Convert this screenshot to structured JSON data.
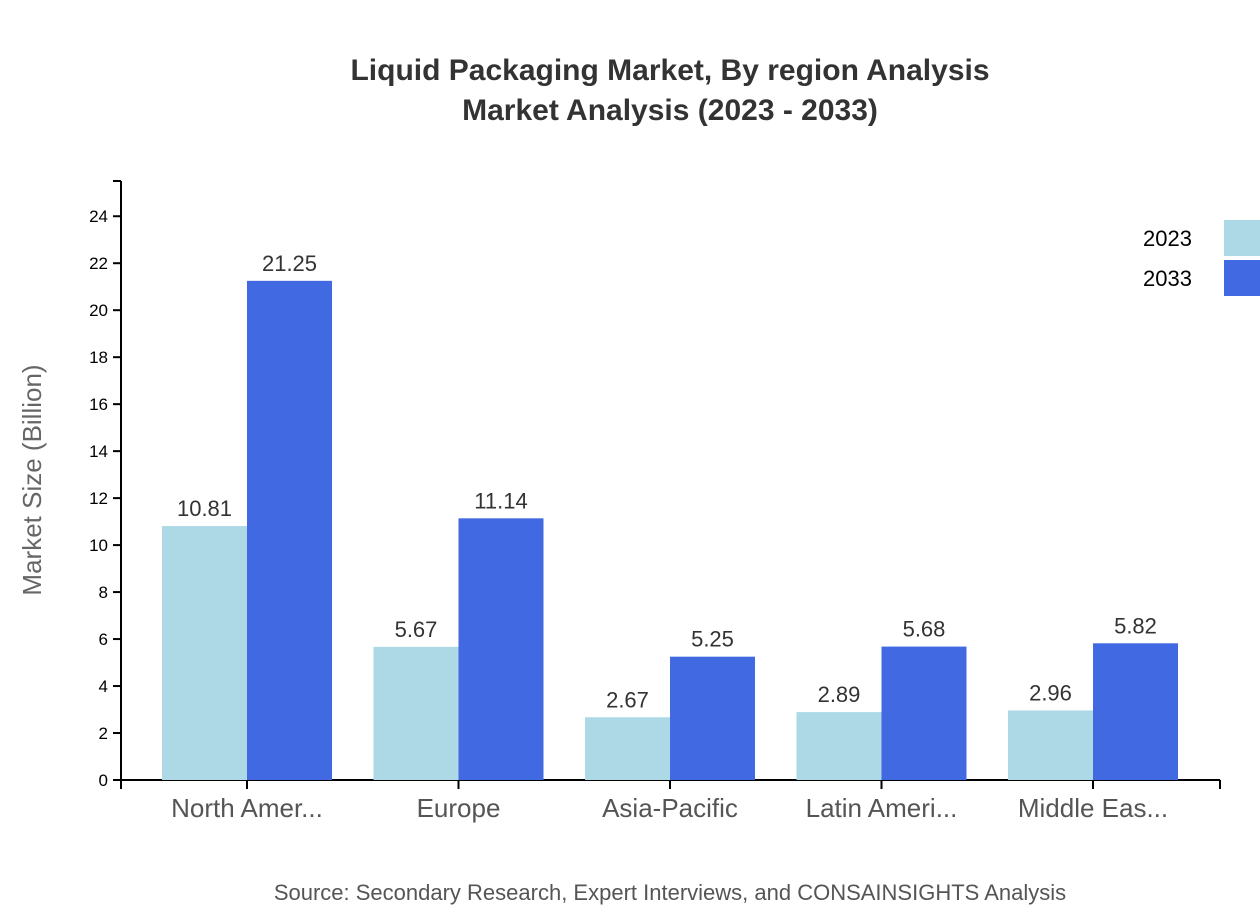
{
  "chart_data": {
    "type": "bar",
    "title": "Liquid Packaging Market, By region Analysis",
    "subtitle": "Market Analysis (2023 - 2033)",
    "xlabel": "",
    "ylabel": "Market Size (Billion)",
    "ylim": [
      0,
      25.5
    ],
    "yticks": [
      0,
      2,
      4,
      6,
      8,
      10,
      12,
      14,
      16,
      18,
      20,
      22,
      24
    ],
    "categories": [
      "North Amer...",
      "Europe",
      "Asia-Pacific",
      "Latin Ameri...",
      "Middle Eas..."
    ],
    "series": [
      {
        "name": "2023",
        "color": "#add8e6",
        "values": [
          10.81,
          5.67,
          2.67,
          2.89,
          2.96
        ]
      },
      {
        "name": "2033",
        "color": "#4169e1",
        "values": [
          21.25,
          11.14,
          5.25,
          5.68,
          5.82
        ]
      }
    ],
    "grid": false,
    "legend": "top-right",
    "source": "Source: Secondary Research, Expert Interviews, and CONSAINSIGHTS Analysis"
  }
}
